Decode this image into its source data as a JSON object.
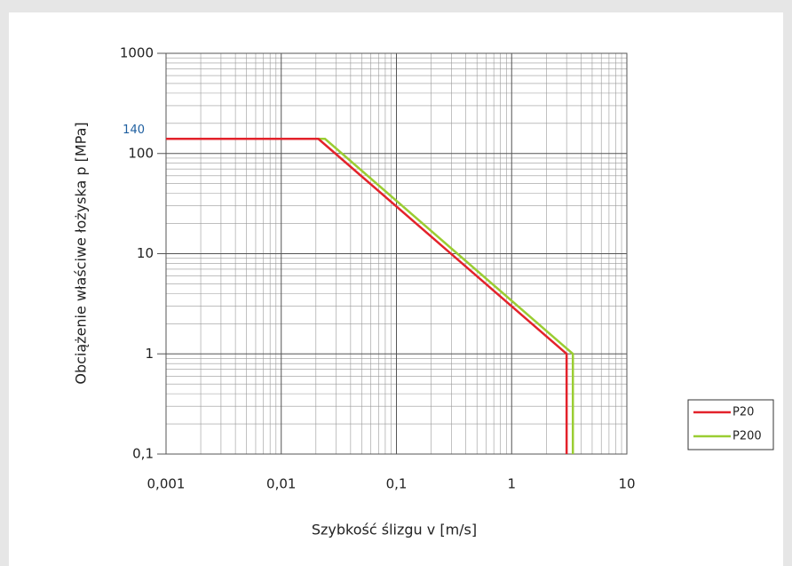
{
  "chart_data": {
    "type": "line",
    "x_label": "Szybkość ślizgu v [m/s]",
    "y_label": "Obciążenie właściwe łożyska p [MPa]",
    "log_x": true,
    "log_y": true,
    "grid": true,
    "legend": "right",
    "xlim": [
      0.001,
      10
    ],
    "ylim": [
      0.1,
      1000
    ],
    "xticks": [
      {
        "value": 0.001,
        "label": "0,001"
      },
      {
        "value": 0.01,
        "label": "0,01"
      },
      {
        "value": 0.1,
        "label": "0,1"
      },
      1,
      10
    ],
    "yticks": [
      {
        "value": 0.1,
        "label": "0,1"
      },
      1,
      10,
      100,
      1000
    ],
    "annotations": [
      {
        "text": "140",
        "y": 140,
        "color": "#1f5fa0"
      }
    ],
    "series": [
      {
        "name": "P20",
        "color": "#e3222b",
        "x": [
          0.001,
          0.021,
          3,
          3
        ],
        "values": [
          140,
          140,
          1,
          0.1
        ]
      },
      {
        "name": "P200",
        "color": "#9acd32",
        "x": [
          0.001,
          0.024,
          3.4,
          3.4
        ],
        "values": [
          140,
          140,
          1,
          0.1
        ]
      }
    ]
  }
}
